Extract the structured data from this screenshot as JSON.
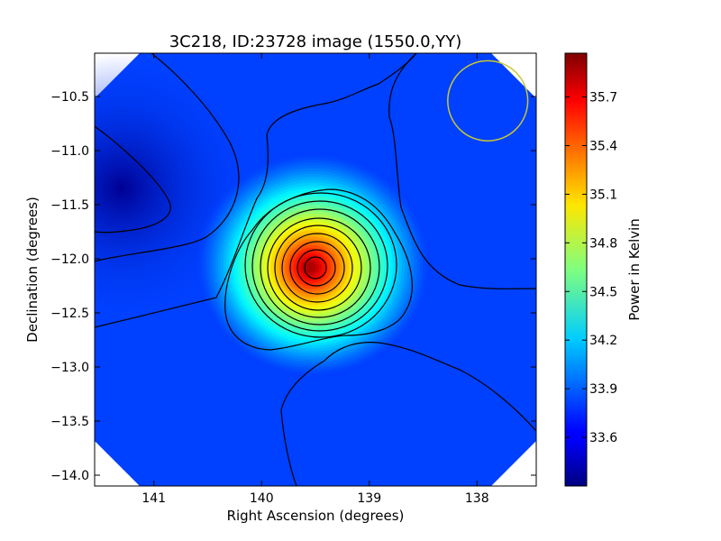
{
  "chart_data": {
    "type": "heatmap",
    "title": "3C218, ID:23728 image (1550.0,YY)",
    "xlabel": "Right Ascension (degrees)",
    "ylabel": "Declination (degrees)",
    "colorbar_label": "Power in Kelvin",
    "colormap": "jet",
    "x_direction": "decreasing",
    "xlim": [
      141.55,
      137.45
    ],
    "ylim": [
      -14.1,
      -10.1
    ],
    "xticks": [
      141,
      140,
      139,
      138
    ],
    "xtick_labels": [
      "141",
      "140",
      "139",
      "138"
    ],
    "yticks": [
      -10.5,
      -11.0,
      -11.5,
      -12.0,
      -12.5,
      -13.0,
      -13.5,
      -14.0
    ],
    "ytick_labels": [
      "−10.5",
      "−11.0",
      "−11.5",
      "−12.0",
      "−12.5",
      "−13.0",
      "−13.5",
      "−14.0"
    ],
    "colorbar_range": [
      33.3,
      35.97
    ],
    "colorbar_ticks": [
      33.6,
      33.9,
      34.2,
      34.5,
      34.8,
      35.1,
      35.4,
      35.7
    ],
    "colorbar_tick_labels": [
      "33.6",
      "33.9",
      "34.2",
      "34.5",
      "34.8",
      "35.1",
      "35.4",
      "35.7"
    ],
    "peak": {
      "ra": 139.55,
      "dec": -12.08,
      "value": 35.9
    },
    "background_level": 33.8,
    "minimum_region": {
      "ra": 141.3,
      "dec": -11.35,
      "value": 33.35
    },
    "contours": true,
    "beam_circle": {
      "ra": 137.9,
      "dec": -10.54,
      "radius_deg": 0.37,
      "color": "#c8c832"
    }
  }
}
